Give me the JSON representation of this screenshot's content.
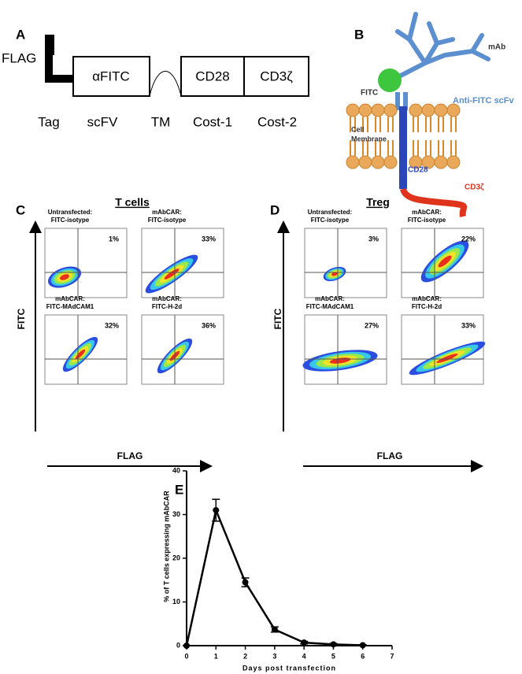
{
  "panel_a": {
    "label": "A",
    "tag": "FLAG",
    "boxes": [
      "αFITC",
      "CD28",
      "CD3ζ"
    ],
    "captions": [
      "Tag",
      "scFV",
      "TM",
      "Cost-1",
      "Cost-2"
    ]
  },
  "panel_b": {
    "label": "B",
    "mab": "mAb",
    "fitc": "FITC",
    "scfv": "Anti-FITC scFv",
    "cell_membrane": [
      "Cell",
      "Membrane"
    ],
    "cd28": "CD28",
    "cd3z": "CD3ζ"
  },
  "panel_c": {
    "label": "C",
    "title": "T cells",
    "y_axis": "FITC",
    "x_axis": "FLAG",
    "plots": [
      {
        "title": [
          "Untransfected:",
          "FITC-isotype"
        ],
        "percent": "1%"
      },
      {
        "title": [
          "mAbCAR:",
          "FITC-isotype"
        ],
        "percent": "33%"
      },
      {
        "title": [
          "mAbCAR:",
          "FITC-MAdCAM1"
        ],
        "percent": "32%"
      },
      {
        "title": [
          "mAbCAR:",
          "FITC-H-2d"
        ],
        "percent": "36%"
      }
    ]
  },
  "panel_d": {
    "label": "D",
    "title": "Treg",
    "y_axis": "FITC",
    "x_axis": "FLAG",
    "plots": [
      {
        "title": [
          "Untransfected:",
          "FITC-isotype"
        ],
        "percent": "3%"
      },
      {
        "title": [
          "mAbCAR:",
          "FITC-isotype"
        ],
        "percent": "22%"
      },
      {
        "title": [
          "mAbCAR:",
          "FITC-MAdCAM1"
        ],
        "percent": "27%"
      },
      {
        "title": [
          "mAbCAR:",
          "FITC-H-2d"
        ],
        "percent": "33%"
      }
    ]
  },
  "panel_e_label": "E",
  "chart_data": {
    "type": "line",
    "xlabel": "Days post transfection",
    "ylabel": "% of T cells expressing mAbCAR",
    "x": [
      0,
      1,
      2,
      3,
      4,
      5,
      6
    ],
    "values": [
      0,
      31,
      14.5,
      3.7,
      0.7,
      0.3,
      0.1
    ],
    "errors": [
      0,
      2.5,
      1,
      0.6,
      0.3,
      0.2,
      0.1
    ],
    "color": "#000000",
    "xlim": [
      0,
      7
    ],
    "xticks": [
      0,
      1,
      2,
      3,
      4,
      5,
      6,
      7
    ],
    "ylim": [
      0,
      40
    ],
    "yticks": [
      0,
      10,
      20,
      30,
      40
    ]
  }
}
